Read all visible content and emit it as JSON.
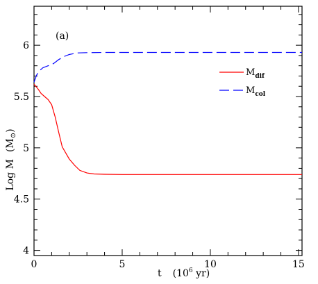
{
  "chart_data": {
    "type": "line",
    "panel_label": "(a)",
    "xlabel": {
      "base": "t",
      "unit_prefix": "(10",
      "unit_exp": "6",
      "unit_suffix": " yr)"
    },
    "ylabel": {
      "base": "Log M",
      "unit_open": "(M",
      "unit_sym": "⊙",
      "unit_close": ")"
    },
    "xlim": [
      0,
      15.2
    ],
    "ylim": [
      3.95,
      6.38
    ],
    "xticks": [
      0,
      5,
      10,
      15
    ],
    "xtick_labels": [
      "0",
      "5",
      "10",
      "15"
    ],
    "yticks": [
      4,
      4.5,
      5,
      5.5,
      6
    ],
    "ytick_labels": [
      "4",
      "4.5",
      "5",
      "5.5",
      "6"
    ],
    "grid": false,
    "legend_position": "top-right",
    "series": [
      {
        "name": "M",
        "name_sub": "dif",
        "color": "#ff0000",
        "dash": "solid",
        "x": [
          0,
          0.2,
          0.4,
          0.6,
          0.8,
          1.0,
          1.2,
          1.4,
          1.6,
          1.8,
          2.0,
          2.3,
          2.6,
          3.0,
          3.4,
          4.0,
          5.0,
          7.0,
          10.0,
          15.2
        ],
        "y": [
          5.62,
          5.58,
          5.53,
          5.5,
          5.47,
          5.42,
          5.3,
          5.15,
          5.01,
          4.95,
          4.89,
          4.83,
          4.78,
          4.755,
          4.745,
          4.742,
          4.74,
          4.74,
          4.74,
          4.74
        ]
      },
      {
        "name": "M",
        "name_sub": "col",
        "color": "#0000ff",
        "dash": "dashed",
        "x": [
          0,
          0.15,
          0.3,
          0.5,
          0.8,
          1.1,
          1.4,
          1.7,
          2.0,
          2.5,
          3.0,
          4.0,
          6.0,
          10.0,
          15.2
        ],
        "y": [
          5.64,
          5.71,
          5.75,
          5.78,
          5.8,
          5.82,
          5.86,
          5.89,
          5.91,
          5.925,
          5.928,
          5.93,
          5.93,
          5.93,
          5.93
        ]
      }
    ]
  }
}
